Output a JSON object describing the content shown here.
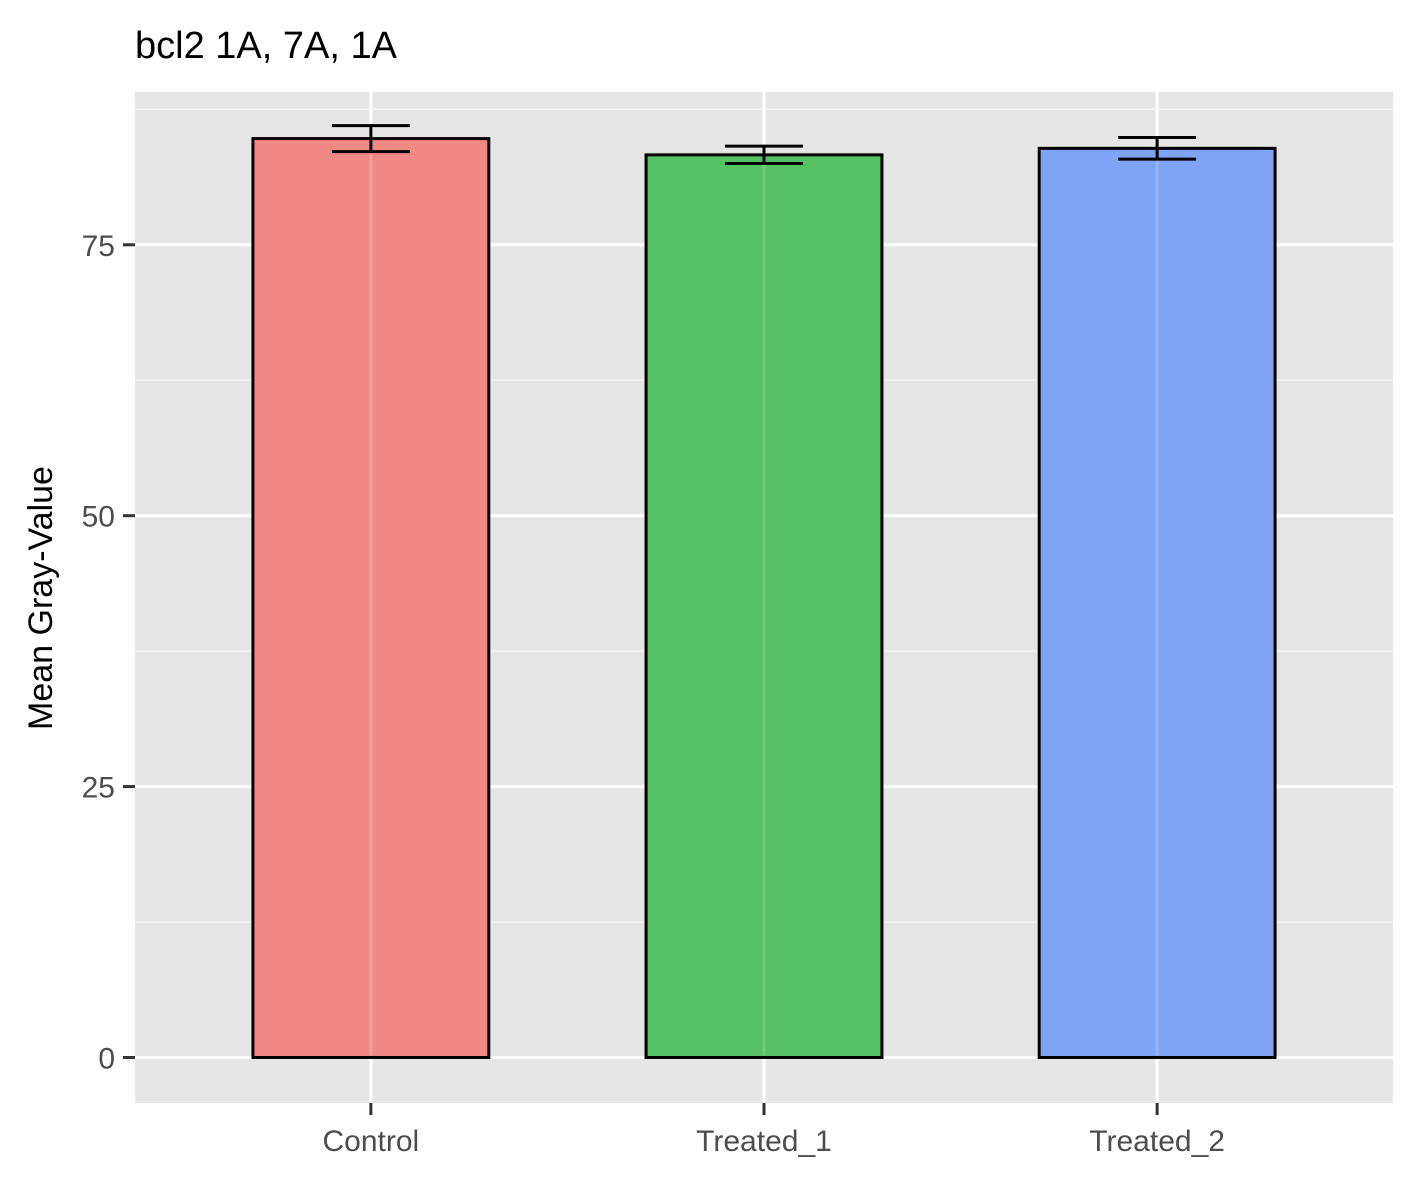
{
  "chart_data": {
    "type": "bar",
    "title": "bcl2 1A, 7A, 1A",
    "xlabel": "",
    "ylabel": "Mean Gray-Value",
    "categories": [
      "Control",
      "Treated_1",
      "Treated_2"
    ],
    "series": [
      {
        "values": [
          84.8,
          83.3,
          83.9
        ],
        "error": [
          1.2,
          0.8,
          1.0
        ],
        "colors": [
          "#F08883",
          "#56C162",
          "#7FA3F5"
        ]
      }
    ],
    "ylim": [
      -4.2,
      89.1
    ],
    "yticks": [
      0,
      25,
      50,
      75
    ],
    "yminor": [
      12.5,
      37.5,
      62.5,
      87.5
    ],
    "grid": true,
    "panel_background": "#E5E5E5",
    "bar_outline": "#000000"
  }
}
